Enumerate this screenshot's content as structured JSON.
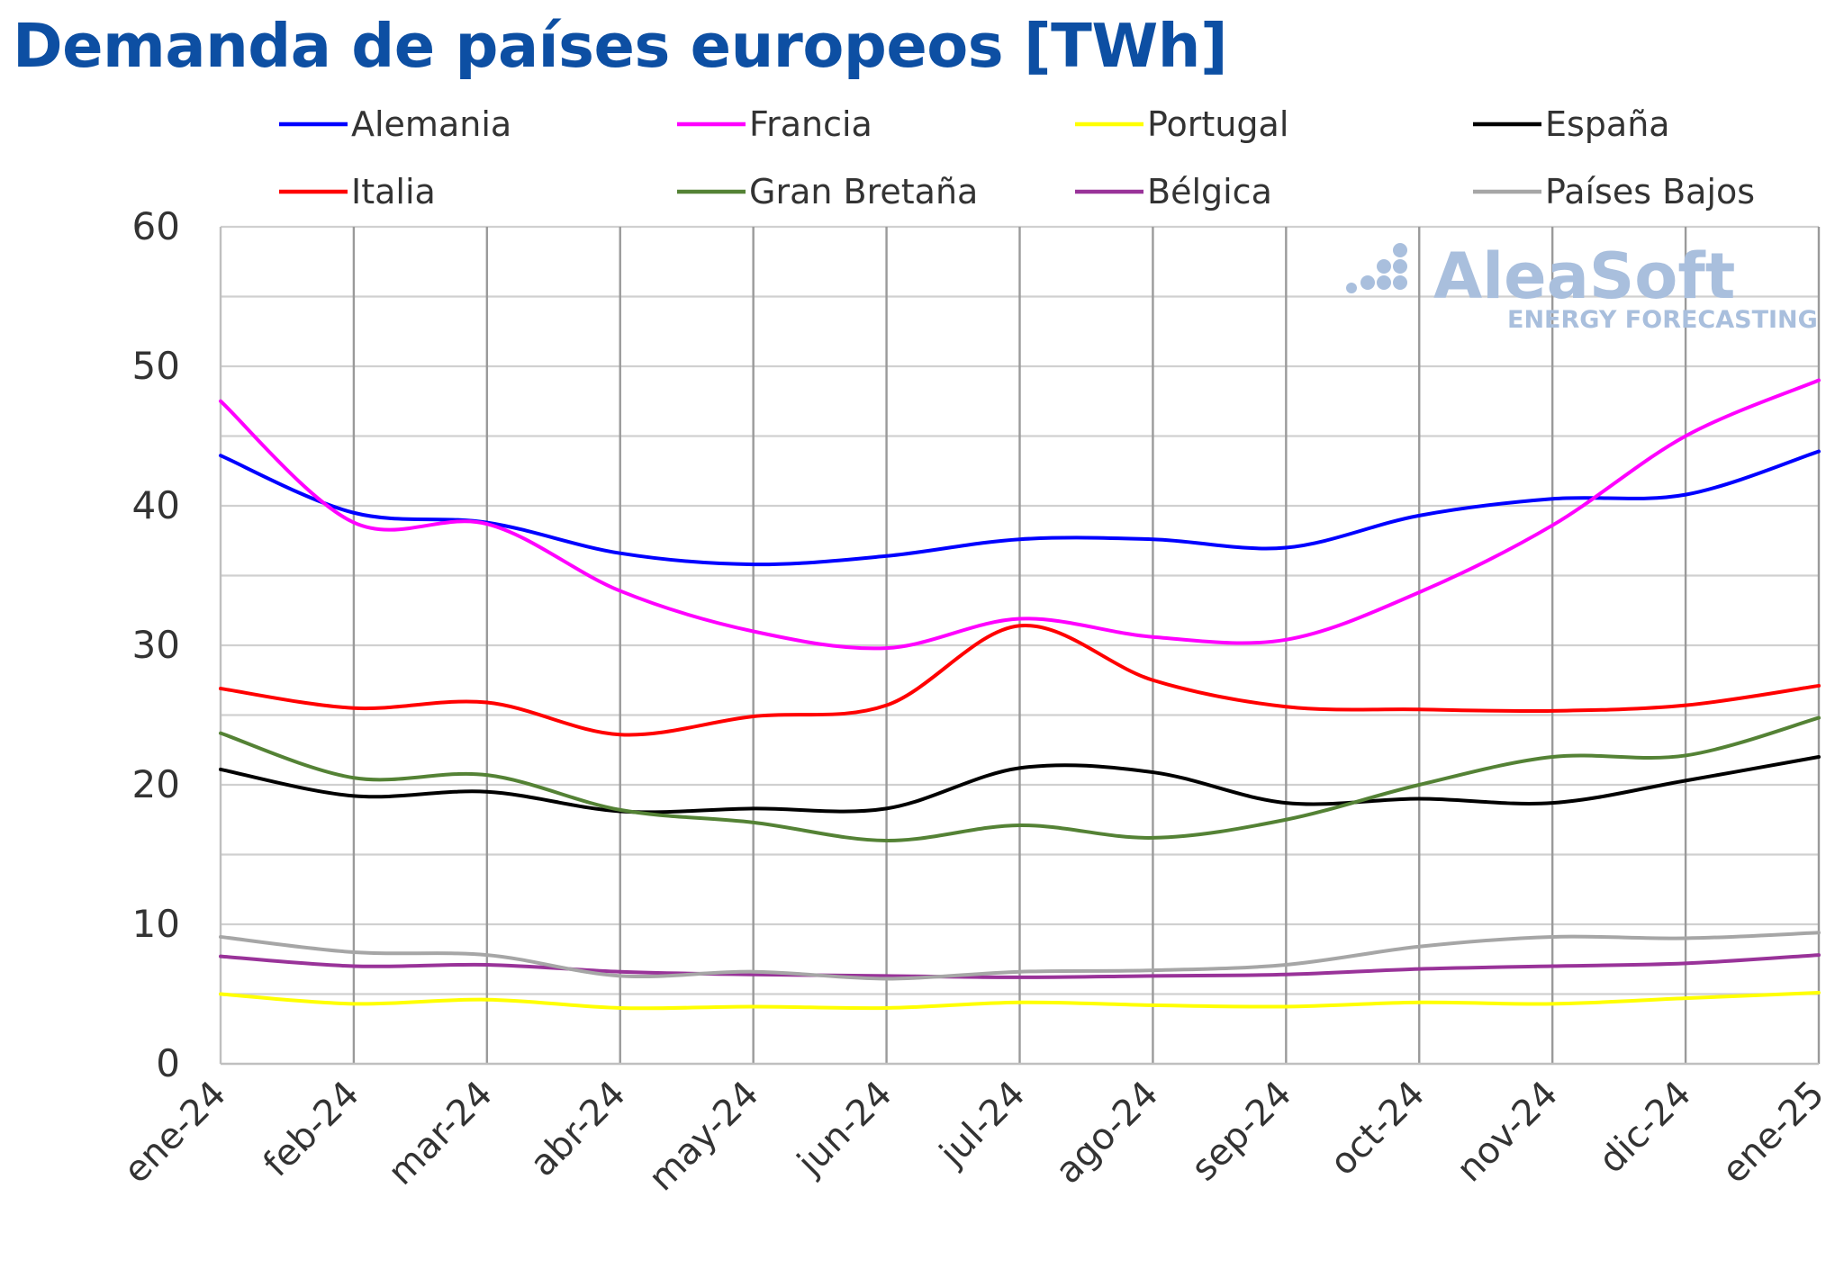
{
  "title": "Demanda de países europeos [TWh]",
  "watermark": {
    "brand": "AleaSoft",
    "tagline": "ENERGY FORECASTING",
    "color": "#a9bfdd"
  },
  "chart_data": {
    "type": "line",
    "title": "Demanda de países europeos [TWh]",
    "xlabel": "",
    "ylabel": "",
    "ylim": [
      0,
      60
    ],
    "yticks": [
      "0",
      "10",
      "20",
      "30",
      "40",
      "50",
      "60"
    ],
    "categories": [
      "ene-24",
      "feb-24",
      "mar-24",
      "abr-24",
      "may-24",
      "jun-24",
      "jul-24",
      "ago-24",
      "sep-24",
      "oct-24",
      "nov-24",
      "dic-24",
      "ene-25"
    ],
    "grid": true,
    "legend_position": "top",
    "series": [
      {
        "name": "Alemania",
        "color": "#0000ff",
        "values": [
          43.6,
          39.5,
          38.8,
          36.6,
          35.8,
          36.4,
          37.6,
          37.6,
          37.0,
          39.3,
          40.5,
          40.8,
          43.9
        ]
      },
      {
        "name": "Francia",
        "color": "#ff00ff",
        "values": [
          47.5,
          38.8,
          38.7,
          33.9,
          31.0,
          29.8,
          31.9,
          30.6,
          30.4,
          33.8,
          38.6,
          45.0,
          49.0
        ]
      },
      {
        "name": "Portugal",
        "color": "#ffff00",
        "values": [
          5.0,
          4.3,
          4.6,
          4.0,
          4.1,
          4.0,
          4.4,
          4.2,
          4.1,
          4.4,
          4.3,
          4.7,
          5.1
        ]
      },
      {
        "name": "España",
        "color": "#000000",
        "values": [
          21.1,
          19.2,
          19.5,
          18.1,
          18.3,
          18.3,
          21.2,
          20.9,
          18.7,
          19.0,
          18.7,
          20.3,
          22.0
        ]
      },
      {
        "name": "Italia",
        "color": "#ff0000",
        "values": [
          26.9,
          25.5,
          25.9,
          23.6,
          24.9,
          25.7,
          31.4,
          27.5,
          25.6,
          25.4,
          25.3,
          25.7,
          27.1
        ]
      },
      {
        "name": "Gran Bretaña",
        "color": "#548235",
        "values": [
          23.7,
          20.5,
          20.7,
          18.2,
          17.3,
          16.0,
          17.1,
          16.2,
          17.5,
          20.0,
          22.0,
          22.1,
          24.8
        ]
      },
      {
        "name": "Bélgica",
        "color": "#993399",
        "values": [
          7.7,
          7.0,
          7.1,
          6.6,
          6.4,
          6.3,
          6.2,
          6.3,
          6.4,
          6.8,
          7.0,
          7.2,
          7.8
        ]
      },
      {
        "name": "Países Bajos",
        "color": "#a6a6a6",
        "values": [
          9.1,
          8.0,
          7.8,
          6.3,
          6.6,
          6.1,
          6.6,
          6.7,
          7.1,
          8.4,
          9.1,
          9.0,
          9.4
        ]
      }
    ]
  }
}
